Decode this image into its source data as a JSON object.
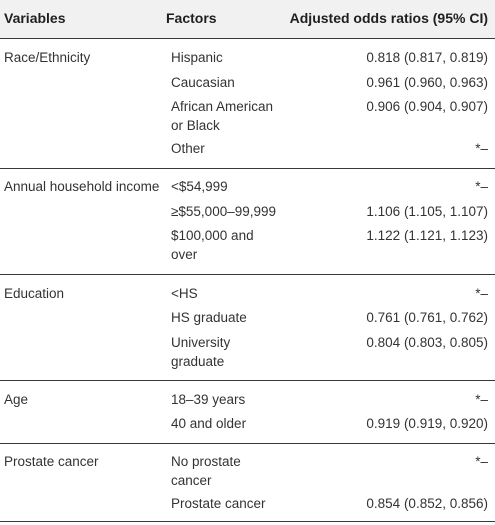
{
  "header": {
    "variables": "Variables",
    "factors": "Factors",
    "odds": "Adjusted odds ratios (95% CI)"
  },
  "groups": [
    {
      "variable": "Race/Ethnicity",
      "rows": [
        {
          "factor": "Hispanic",
          "factor2": "",
          "or": "0.818 (0.817, 0.819)"
        },
        {
          "factor": "Caucasian",
          "factor2": "",
          "or": "0.961 (0.960, 0.963)"
        },
        {
          "factor": "African American",
          "factor2": "or Black",
          "or": "0.906 (0.904, 0.907)"
        },
        {
          "factor": "Other",
          "factor2": "",
          "or": "*–"
        }
      ]
    },
    {
      "variable": "Annual household income",
      "rows": [
        {
          "factor": "<$54,999",
          "factor2": "",
          "or": "*–"
        },
        {
          "factor": "≥$55,000–99,999",
          "factor2": "",
          "or": "1.106 (1.105, 1.107)"
        },
        {
          "factor": "$100,000 and",
          "factor2": "over",
          "or": "1.122 (1.121, 1.123)"
        }
      ]
    },
    {
      "variable": "Education",
      "rows": [
        {
          "factor": "<HS",
          "factor2": "",
          "or": "*–"
        },
        {
          "factor": "HS graduate",
          "factor2": "",
          "or": "0.761 (0.761, 0.762)"
        },
        {
          "factor": "University",
          "factor2": "graduate",
          "or": "0.804 (0.803, 0.805)"
        }
      ]
    },
    {
      "variable": "Age",
      "rows": [
        {
          "factor": "18–39 years",
          "factor2": "",
          "or": "*–"
        },
        {
          "factor": "40 and older",
          "factor2": "",
          "or": "0.919 (0.919, 0.920)"
        }
      ]
    },
    {
      "variable": "Prostate cancer",
      "rows": [
        {
          "factor": "No prostate",
          "factor2": "cancer",
          "or": "*–"
        },
        {
          "factor": "Prostate cancer",
          "factor2": "",
          "or": "0.854 (0.852, 0.856)"
        }
      ]
    }
  ]
}
